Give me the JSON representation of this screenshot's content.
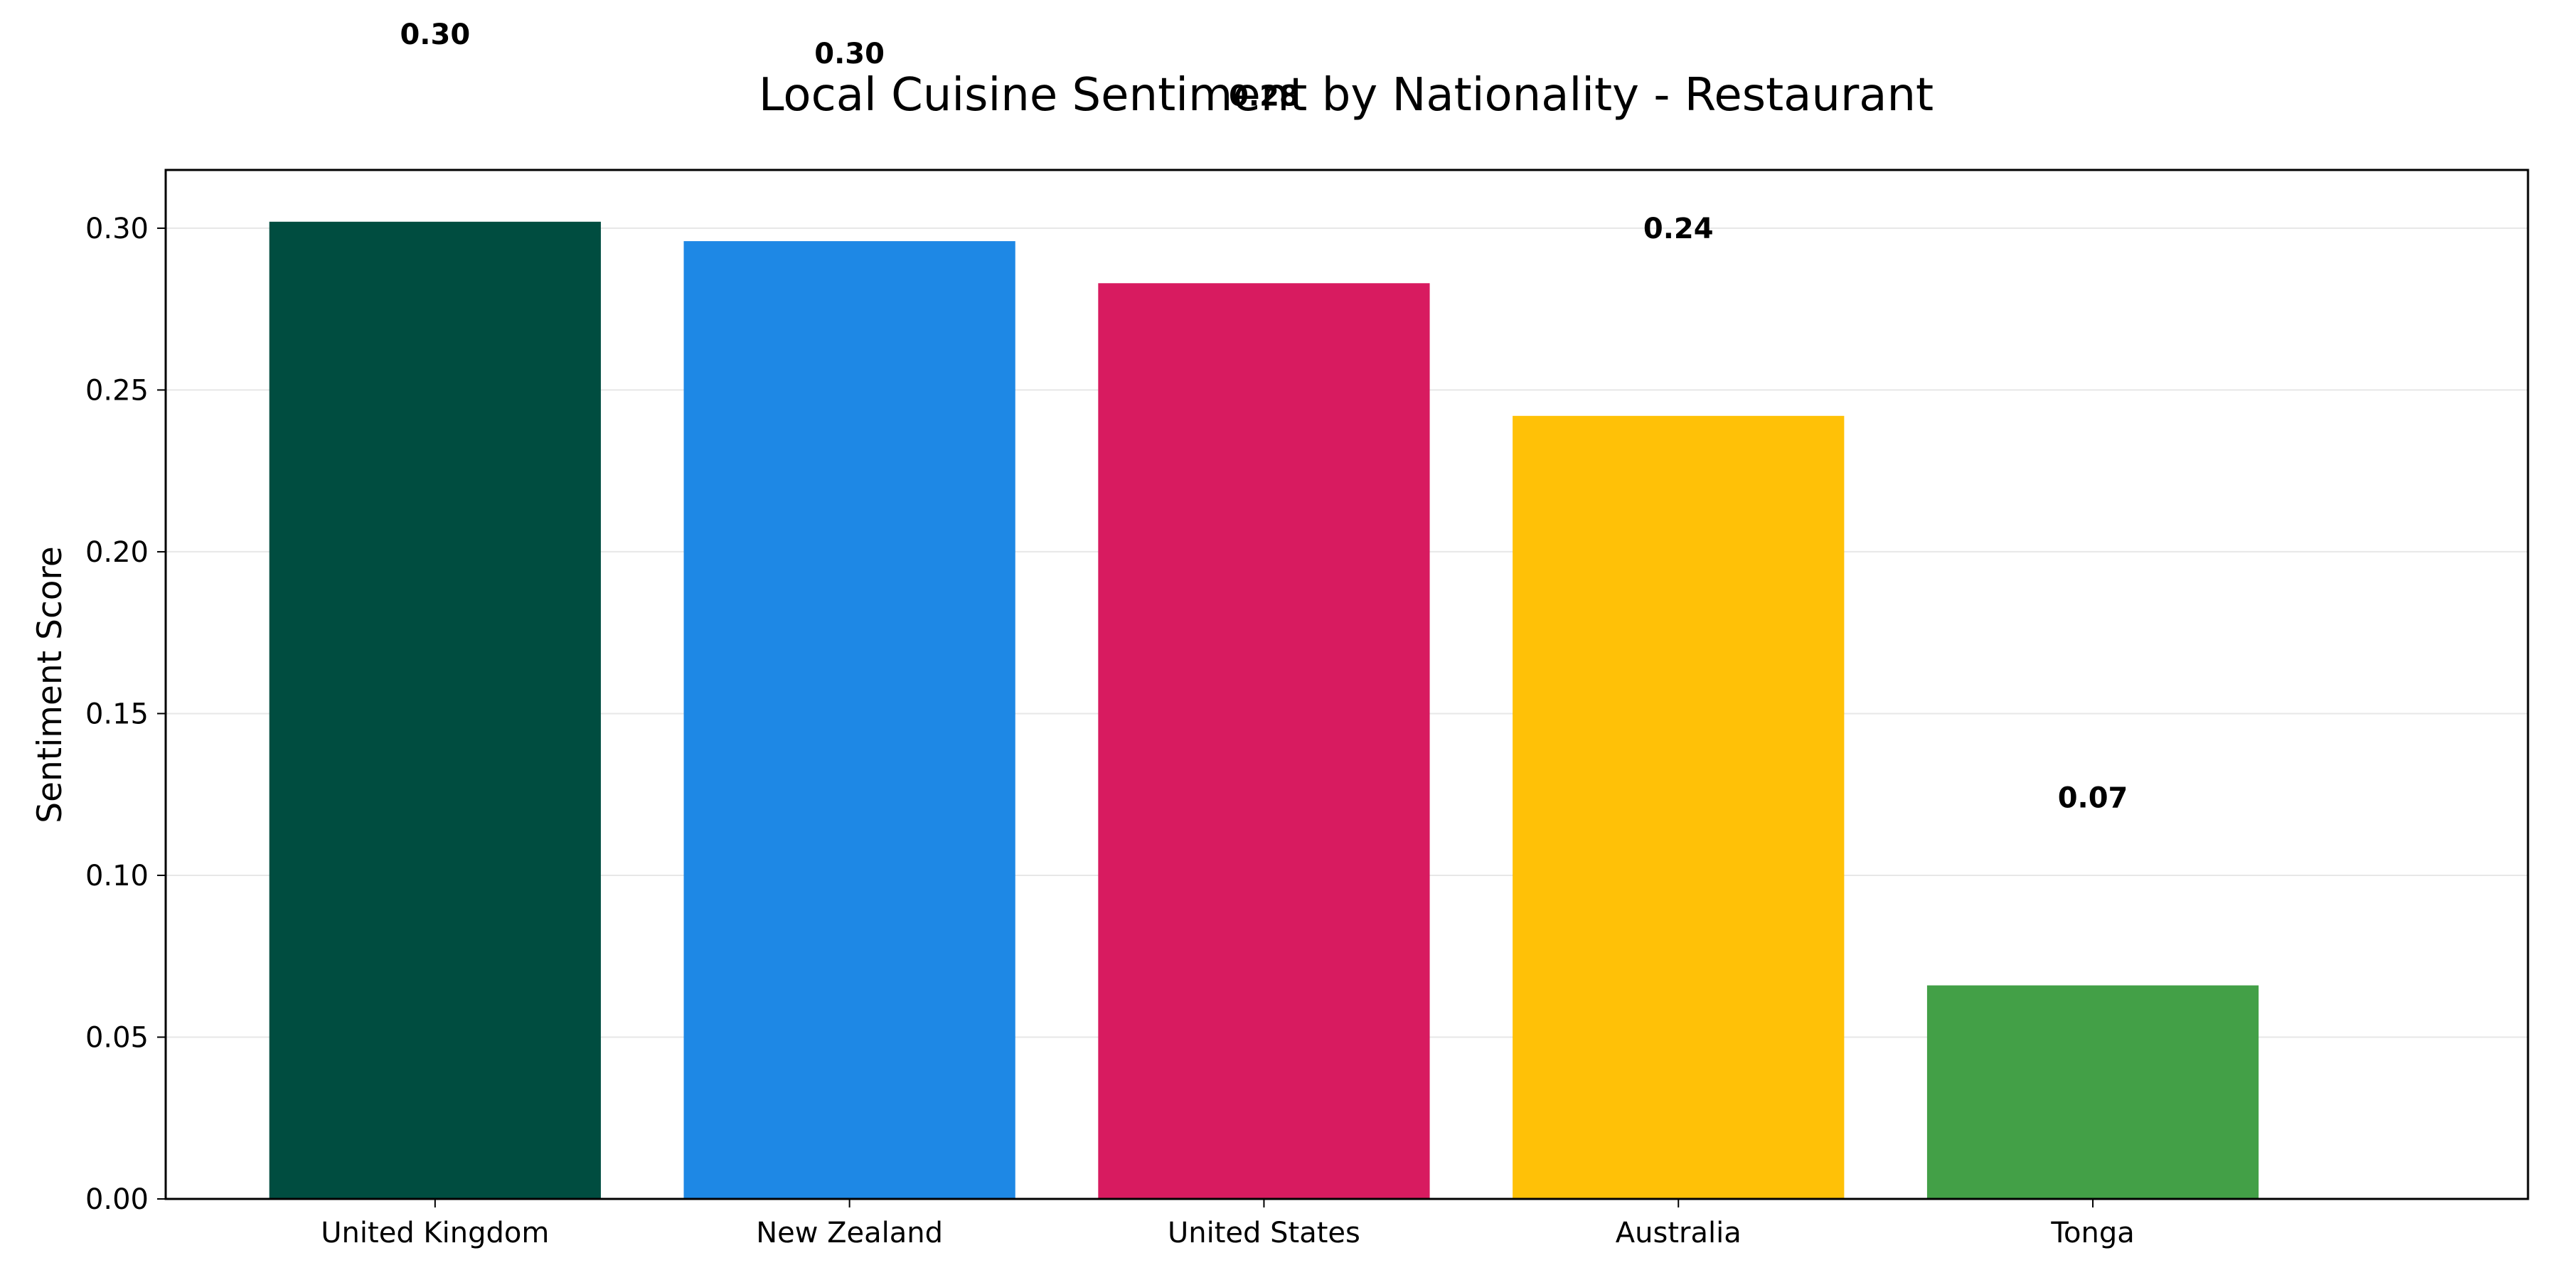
{
  "chart_data": {
    "type": "bar",
    "title": "Local Cuisine Sentiment by Nationality - Restaurant",
    "xlabel": "",
    "ylabel": "Sentiment Score",
    "categories": [
      "United Kingdom",
      "New Zealand",
      "United States",
      "Australia",
      "Tonga"
    ],
    "values": [
      0.302,
      0.296,
      0.283,
      0.242,
      0.066
    ],
    "data_labels": [
      "0.30",
      "0.30",
      "0.28",
      "0.24",
      "0.07"
    ],
    "colors": [
      "#004d40",
      "#1e88e5",
      "#d81b60",
      "#ffc107",
      "#43a047"
    ],
    "ylim": [
      0,
      0.318
    ],
    "yticks": [
      0.0,
      0.05,
      0.1,
      0.15,
      0.2,
      0.25,
      0.3
    ],
    "ytick_labels": [
      "0.00",
      "0.05",
      "0.10",
      "0.15",
      "0.20",
      "0.25",
      "0.30"
    ],
    "grid": "horizontal",
    "legend": "none"
  }
}
